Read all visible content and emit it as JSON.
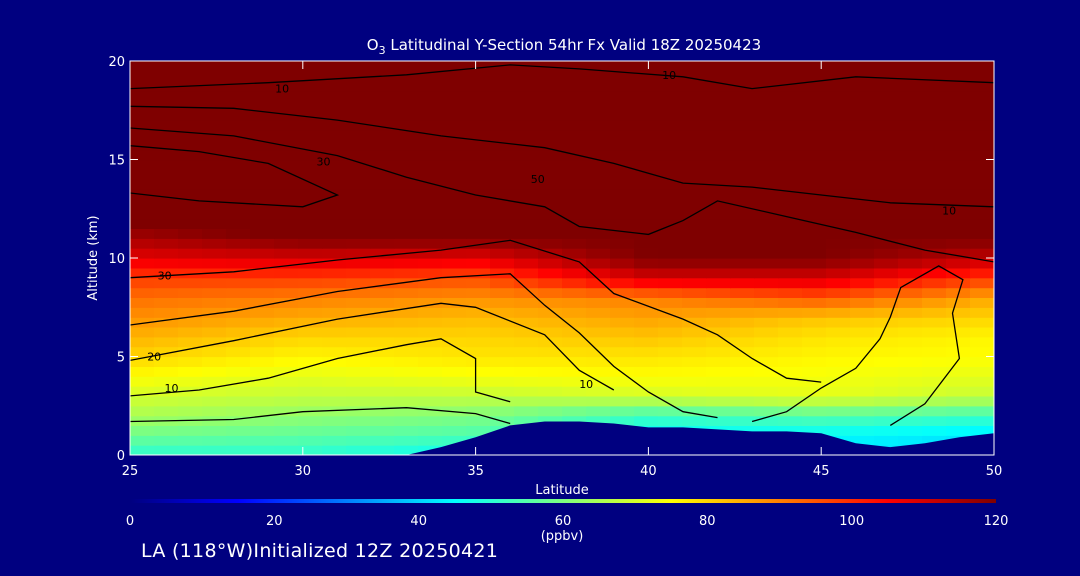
{
  "chart_data": {
    "type": "heatmap",
    "title": "O",
    "title_sub": "3",
    "title_rest": " Latitudinal Y-Section 54hr  Fx Valid 18Z 20250423",
    "xlabel": "Latitude",
    "ylabel": "Altitude (km)",
    "xlim": [
      25,
      50
    ],
    "ylim": [
      0,
      20
    ],
    "x_ticks": [
      "25",
      "30",
      "35",
      "40",
      "45",
      "50"
    ],
    "y_ticks": [
      "0",
      "5",
      "10",
      "15",
      "20"
    ],
    "colorbar": {
      "label": "(ppbv)",
      "range": [
        0,
        120
      ],
      "ticks": [
        "0",
        "20",
        "40",
        "60",
        "80",
        "100",
        "120"
      ],
      "colors": [
        "#00007f",
        "#0000ff",
        "#007fff",
        "#00ffff",
        "#7fff7f",
        "#ffff00",
        "#ff7f00",
        "#ff0000",
        "#7f0000"
      ]
    },
    "field_rows": {
      "latitudes": [
        25,
        30,
        35,
        40,
        45,
        50
      ],
      "altitudes_km": [
        0,
        1,
        2,
        3,
        4,
        5,
        6,
        7,
        8,
        9,
        10,
        11,
        12,
        13,
        20
      ],
      "ozone_ppbv": [
        [
          50,
          50,
          45,
          42,
          42,
          40
        ],
        [
          58,
          56,
          54,
          45,
          45,
          42
        ],
        [
          65,
          62,
          60,
          52,
          55,
          52
        ],
        [
          70,
          68,
          68,
          70,
          72,
          68
        ],
        [
          75,
          72,
          74,
          75,
          74,
          72
        ],
        [
          80,
          76,
          78,
          78,
          76,
          75
        ],
        [
          84,
          80,
          80,
          82,
          78,
          76
        ],
        [
          88,
          85,
          83,
          86,
          82,
          80
        ],
        [
          92,
          90,
          88,
          90,
          95,
          85
        ],
        [
          98,
          98,
          96,
          110,
          110,
          98
        ],
        [
          108,
          110,
          108,
          120,
          120,
          112
        ],
        [
          115,
          120,
          120,
          120,
          120,
          120
        ],
        [
          122,
          125,
          125,
          125,
          125,
          125
        ],
        [
          125,
          125,
          125,
          125,
          125,
          125
        ],
        [
          125,
          125,
          125,
          125,
          125,
          125
        ]
      ]
    },
    "terrain": {
      "latitude": [
        25,
        33,
        34,
        35,
        36,
        37,
        38,
        39,
        40,
        41,
        42,
        43,
        44,
        45,
        46,
        47,
        48,
        49,
        50
      ],
      "altitude_km": [
        0,
        0,
        0.4,
        0.9,
        1.5,
        1.7,
        1.7,
        1.6,
        1.4,
        1.4,
        1.3,
        1.2,
        1.2,
        1.1,
        0.6,
        0.4,
        0.6,
        0.9,
        1.1
      ]
    },
    "contour_labels": [
      {
        "text": "10",
        "lat": 29.4,
        "alt": 18.6
      },
      {
        "text": "10",
        "lat": 40.6,
        "alt": 19.3
      },
      {
        "text": "30",
        "lat": 30.6,
        "alt": 14.9
      },
      {
        "text": "50",
        "lat": 36.8,
        "alt": 14.0
      },
      {
        "text": "30",
        "lat": 26.0,
        "alt": 9.1
      },
      {
        "text": "20",
        "lat": 25.7,
        "alt": 5.0
      },
      {
        "text": "10",
        "lat": 26.2,
        "alt": 3.4
      },
      {
        "text": "10",
        "lat": 38.2,
        "alt": 3.6
      },
      {
        "text": "10",
        "lat": 48.7,
        "alt": 12.4
      }
    ]
  },
  "footer": {
    "text": "LA (118°W)Initialized 12Z 20250421"
  }
}
